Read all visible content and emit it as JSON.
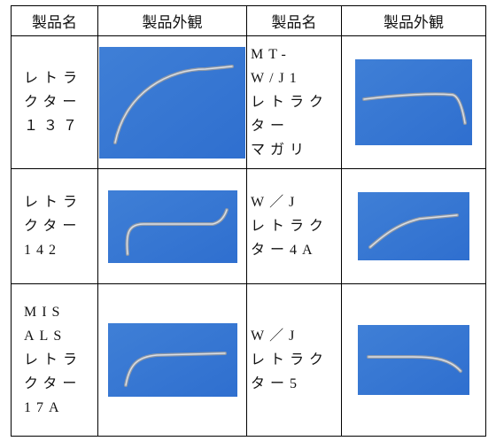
{
  "header": [
    "製品名",
    "製品外観",
    "製品名",
    "製品外観"
  ],
  "rows": [
    {
      "left": [
        "レトラ",
        "クター",
        "１３７"
      ],
      "right": [
        "MT-W/J1",
        "レトラク",
        "ター",
        "マガリ"
      ]
    },
    {
      "left": [
        "レトラ",
        "クター",
        "142"
      ],
      "right": [
        "W／J",
        "レトラク",
        "ター4A"
      ]
    },
    {
      "left": [
        "MIS",
        "ALS",
        "レトラ",
        "クター",
        "17A"
      ],
      "right": [
        "W／J",
        "レトラク",
        "ター5"
      ]
    }
  ]
}
